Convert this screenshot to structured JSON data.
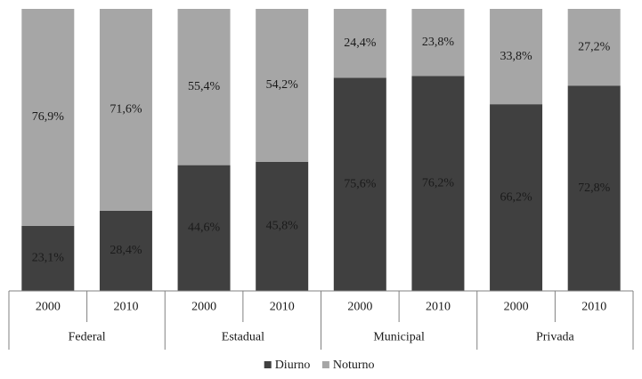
{
  "chart_data": {
    "type": "bar",
    "stacked": true,
    "percent_stacked": true,
    "title": "",
    "xlabel": "",
    "ylabel": "",
    "ylim": [
      0,
      100
    ],
    "grid": false,
    "legend_position": "bottom",
    "groups": [
      {
        "label": "Federal",
        "categories": [
          "2000",
          "2010"
        ]
      },
      {
        "label": "Estadual",
        "categories": [
          "2000",
          "2010"
        ]
      },
      {
        "label": "Municipal",
        "categories": [
          "2000",
          "2010"
        ]
      },
      {
        "label": "Privada",
        "categories": [
          "2000",
          "2010"
        ]
      }
    ],
    "series": [
      {
        "name": "Diurno",
        "color": "#404040",
        "values": [
          23.1,
          28.4,
          44.6,
          45.8,
          75.6,
          76.2,
          66.2,
          72.8
        ],
        "labels": [
          "23,1%",
          "28,4%",
          "44,6%",
          "45,8%",
          "75,6%",
          "76,2%",
          "66,2%",
          "72,8%"
        ]
      },
      {
        "name": "Noturno",
        "color": "#a6a6a6",
        "values": [
          76.9,
          71.6,
          55.4,
          54.2,
          24.4,
          23.8,
          33.8,
          27.2
        ],
        "labels": [
          "76,9%",
          "71,6%",
          "55,4%",
          "54,2%",
          "24,4%",
          "23,8%",
          "33,8%",
          "27,2%"
        ]
      }
    ]
  }
}
